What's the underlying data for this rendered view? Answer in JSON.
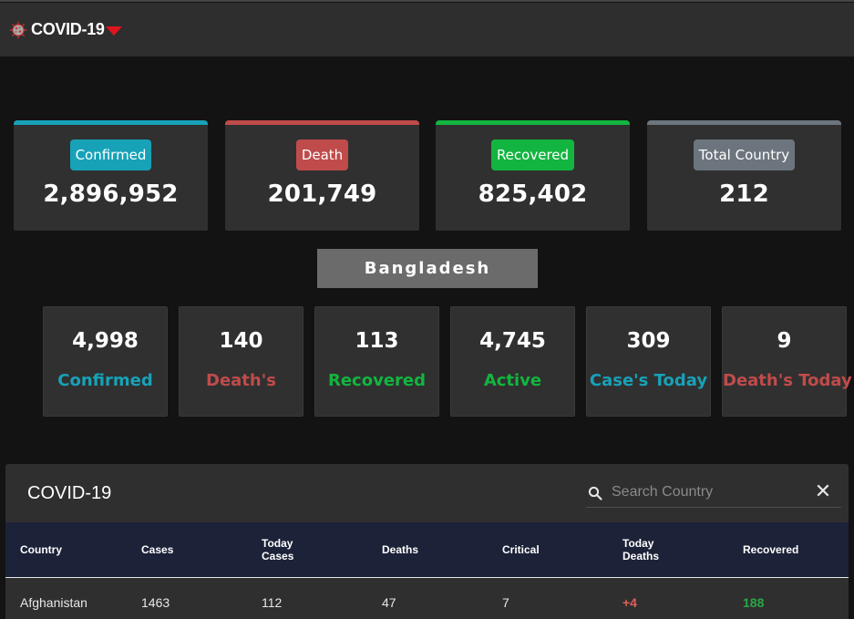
{
  "app": {
    "brand": "COVID-19",
    "logo_icon": "virus-icon"
  },
  "global": {
    "confirmed": {
      "label": "Confirmed",
      "value": "2,896,952",
      "color": "#17a2b8"
    },
    "death": {
      "label": "Death",
      "value": "201,749",
      "color": "#c04b4b"
    },
    "recovered": {
      "label": "Recovered",
      "value": "825,402",
      "color": "#12b53f"
    },
    "countries": {
      "label": "Total Country",
      "value": "212",
      "color": "#6c757d"
    }
  },
  "country": {
    "name": "Bangladesh",
    "stats": [
      {
        "value": "4,998",
        "label": "Confirmed",
        "color": "#17a2b8"
      },
      {
        "value": "140",
        "label": "Death's",
        "color": "#c04b4b"
      },
      {
        "value": "113",
        "label": "Recovered",
        "color": "#12b53f"
      },
      {
        "value": "4,745",
        "label": "Active",
        "color": "#12b53f"
      },
      {
        "value": "309",
        "label": "Case's Today",
        "color": "#17a2b8"
      },
      {
        "value": "9",
        "label": "Death's Today",
        "color": "#c04b4b"
      }
    ]
  },
  "table": {
    "title": "COVID-19",
    "search_placeholder": "Search Country",
    "headers": [
      "Country",
      "Cases",
      "Today Cases",
      "Deaths",
      "Critical",
      "Today Deaths",
      "Recovered"
    ],
    "rows": [
      [
        "Afghanistan",
        "1463",
        "112",
        "47",
        "7",
        "+4",
        "188"
      ]
    ]
  }
}
